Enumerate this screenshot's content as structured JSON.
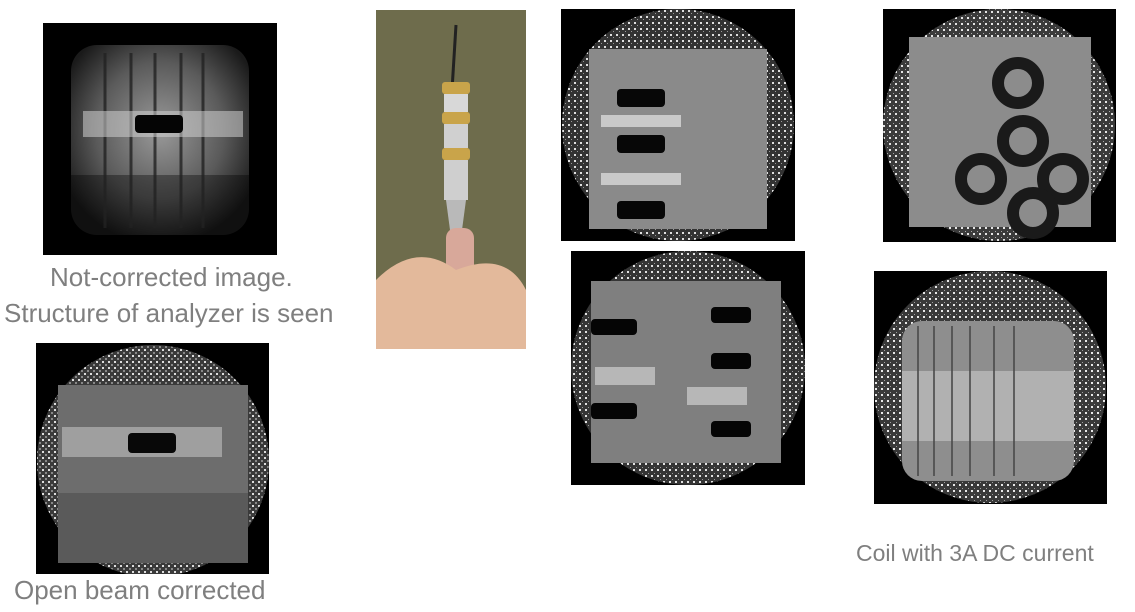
{
  "captions": {
    "not_corrected_line1": "Not-corrected image.",
    "not_corrected_line2": "Structure of analyzer is seen",
    "open_beam": "Open beam corrected",
    "coil": "Coil with 3A DC current"
  },
  "colors": {
    "caption_gray": "#7f7f7f",
    "background": "#ffffff",
    "frame": "#000000"
  }
}
